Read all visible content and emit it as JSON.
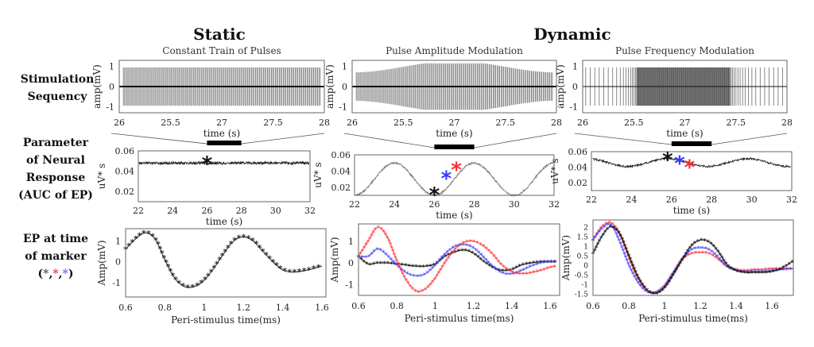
{
  "headers": {
    "static": "Static",
    "dynamic": "Dynamic"
  },
  "row_labels": {
    "row1": [
      "Stimulation",
      "Sequency"
    ],
    "row2": [
      "Parameter",
      "of Neural",
      "Response",
      "(AUC of EP)"
    ],
    "row3": [
      "EP at time",
      "of marker"
    ],
    "row3_markers": [
      "*",
      ",",
      "*",
      ",",
      "*"
    ],
    "row3_marker_colors": [
      "#555555",
      "#222222",
      "#ff3333",
      "#222222",
      "#6666ff"
    ]
  },
  "colors": {
    "black": "#111111",
    "red": "#ff2a2a",
    "blue": "#3a3aff",
    "gray_trace": "#777777"
  },
  "chart_data": [
    {
      "id": "stim-static",
      "type": "line",
      "title": "Constant Train of Pulses",
      "xlabel": "time (s)",
      "ylabel": "amp(mV)",
      "xticks": [
        "26",
        "25.5",
        "27",
        "27.5",
        "28"
      ],
      "yticks": [
        "1",
        "0",
        "-1"
      ],
      "ylim": [
        -1.3,
        1.3
      ],
      "pulse_count": 150,
      "pulse_amplitude": 0.95,
      "modulation": "none"
    },
    {
      "id": "stim-pam",
      "type": "line",
      "title": "Pulse Amplitude Modulation",
      "xlabel": "time (s)",
      "ylabel": "amp(mV)",
      "xticks": [
        "26",
        "25.5",
        "27",
        "27.5",
        "28"
      ],
      "yticks": [
        "1",
        "0",
        "-1"
      ],
      "ylim": [
        -1.3,
        1.3
      ],
      "pulse_count": 150,
      "amplitude_min": 0.7,
      "amplitude_max": 1.15,
      "modulation": "amplitude"
    },
    {
      "id": "stim-pfm",
      "type": "line",
      "title": "Pulse Frequency Modulation",
      "xlabel": "time (s)",
      "ylabel": "amp(mV)",
      "xticks": [
        "26",
        "25.5",
        "27",
        "27.5",
        "28"
      ],
      "yticks": [
        "1",
        "0",
        "-1"
      ],
      "ylim": [
        -1.3,
        1.3
      ],
      "pulse_amplitude": 0.95,
      "dense_region_fraction": [
        0.26,
        0.72
      ],
      "modulation": "frequency"
    },
    {
      "id": "auc-static",
      "type": "line",
      "xlabel": "time (s)",
      "ylabel": "uV* s",
      "xlim": [
        22,
        32
      ],
      "ylim": [
        0.01,
        0.06
      ],
      "xticks": [
        "22",
        "24",
        "26",
        "28",
        "30",
        "32"
      ],
      "yticks": [
        "0.06",
        "0.04",
        "0.02"
      ],
      "baseline": 0.048,
      "oscillation_amp": 0.0,
      "period": 4,
      "window": [
        26,
        28
      ],
      "markers": [
        {
          "x": 26,
          "y": 0.049,
          "color": "black"
        }
      ]
    },
    {
      "id": "auc-pam",
      "type": "line",
      "xlabel": "time (s)",
      "ylabel": "uV* s",
      "xlim": [
        22,
        32
      ],
      "ylim": [
        0.01,
        0.06
      ],
      "xticks": [
        "22",
        "24",
        "26",
        "28",
        "30",
        "32"
      ],
      "yticks": [
        "0.06",
        "0.04",
        "0.02"
      ],
      "baseline": 0.03,
      "oscillation_amp": 0.02,
      "period": 4,
      "window": [
        26,
        28
      ],
      "markers": [
        {
          "x": 26.0,
          "y": 0.013,
          "color": "black"
        },
        {
          "x": 26.6,
          "y": 0.033,
          "color": "blue"
        },
        {
          "x": 27.1,
          "y": 0.044,
          "color": "red"
        }
      ]
    },
    {
      "id": "auc-pfm",
      "type": "line",
      "xlabel": "time (s)",
      "ylabel": "uV* s",
      "xlim": [
        22,
        32
      ],
      "ylim": [
        0.01,
        0.06
      ],
      "xticks": [
        "22",
        "24",
        "26",
        "28",
        "30",
        "32"
      ],
      "yticks": [
        "0.06",
        "0.04",
        "0.02"
      ],
      "baseline": 0.046,
      "oscillation_amp": 0.005,
      "period": 4,
      "window": [
        26,
        28
      ],
      "markers": [
        {
          "x": 25.8,
          "y": 0.052,
          "color": "black"
        },
        {
          "x": 26.4,
          "y": 0.047,
          "color": "blue"
        },
        {
          "x": 26.9,
          "y": 0.042,
          "color": "red"
        }
      ]
    },
    {
      "id": "ep-static",
      "type": "line",
      "xlabel": "Peri-stimulus time(ms)",
      "ylabel": "Amp(mV)",
      "xlim": [
        0.6,
        1.62
      ],
      "ylim": [
        -1.7,
        1.6
      ],
      "xticks": [
        "0.6",
        "0.8",
        "1",
        "1.2",
        "1.4",
        "1.6"
      ],
      "yticks": [
        "1",
        "0",
        "-1"
      ],
      "series": [
        {
          "name": "black",
          "x": [
            0.6,
            0.65,
            0.7,
            0.75,
            0.8,
            0.85,
            0.9,
            0.95,
            1.0,
            1.05,
            1.1,
            1.15,
            1.2,
            1.25,
            1.3,
            1.35,
            1.4,
            1.45,
            1.5,
            1.55,
            1.6
          ],
          "y": [
            0.6,
            1.1,
            1.4,
            1.1,
            0.1,
            -0.8,
            -1.2,
            -1.2,
            -0.9,
            -0.3,
            0.4,
            1.0,
            1.2,
            1.0,
            0.5,
            0.0,
            -0.4,
            -0.5,
            -0.45,
            -0.35,
            -0.2
          ]
        }
      ]
    },
    {
      "id": "ep-pam",
      "type": "line",
      "xlabel": "Peri-stimulus time(ms)",
      "ylabel": "Amp(mV)",
      "xlim": [
        0.6,
        1.65
      ],
      "ylim": [
        -1.5,
        1.8
      ],
      "xticks": [
        "0.6",
        "0.8",
        "1",
        "1.2",
        "1.4",
        "1.6"
      ],
      "yticks": [
        "1",
        "0",
        "-1"
      ],
      "series": [
        {
          "name": "black",
          "x": [
            0.6,
            0.65,
            0.7,
            0.75,
            0.8,
            0.85,
            0.9,
            0.95,
            1.0,
            1.05,
            1.1,
            1.15,
            1.2,
            1.25,
            1.3,
            1.35,
            1.4,
            1.45,
            1.5,
            1.55,
            1.6,
            1.63
          ],
          "y": [
            0.3,
            -0.05,
            0.0,
            0.0,
            -0.05,
            -0.1,
            -0.15,
            -0.15,
            -0.05,
            0.3,
            0.5,
            0.6,
            0.45,
            0.1,
            -0.2,
            -0.35,
            -0.3,
            -0.1,
            0.0,
            0.05,
            0.05,
            0.05
          ]
        },
        {
          "name": "blue",
          "x": [
            0.6,
            0.65,
            0.7,
            0.75,
            0.8,
            0.85,
            0.9,
            0.95,
            1.0,
            1.05,
            1.1,
            1.15,
            1.2,
            1.25,
            1.3,
            1.35,
            1.4,
            1.45,
            1.5,
            1.55,
            1.6,
            1.63
          ],
          "y": [
            0.3,
            0.3,
            0.65,
            0.35,
            -0.1,
            -0.45,
            -0.6,
            -0.5,
            -0.1,
            0.4,
            0.75,
            0.85,
            0.7,
            0.3,
            -0.15,
            -0.45,
            -0.5,
            -0.35,
            -0.15,
            0.0,
            0.05,
            0.05
          ]
        },
        {
          "name": "red",
          "x": [
            0.6,
            0.65,
            0.7,
            0.75,
            0.8,
            0.85,
            0.9,
            0.95,
            1.0,
            1.05,
            1.1,
            1.15,
            1.2,
            1.25,
            1.3,
            1.35,
            1.4,
            1.45,
            1.5,
            1.55,
            1.6,
            1.63
          ],
          "y": [
            0.3,
            1.0,
            1.65,
            1.2,
            0.1,
            -0.8,
            -1.3,
            -1.2,
            -0.7,
            0.0,
            0.6,
            0.95,
            1.0,
            0.8,
            0.4,
            -0.1,
            -0.4,
            -0.5,
            -0.45,
            -0.35,
            -0.2,
            -0.15
          ]
        }
      ]
    },
    {
      "id": "ep-pfm",
      "type": "line",
      "xlabel": "Peri-stimulus time(ms)",
      "ylabel": "Amp(mV)",
      "xlim": [
        0.6,
        1.72
      ],
      "ylim": [
        -1.6,
        2.35
      ],
      "xticks": [
        "0.6",
        "0.8",
        "1",
        "1.2",
        "1.4",
        "1.6"
      ],
      "yticks": [
        "2",
        "1.5",
        "1",
        "0.5",
        "0",
        "-0.5",
        "-1",
        "-1.5"
      ],
      "series": [
        {
          "name": "black",
          "x": [
            0.6,
            0.65,
            0.7,
            0.75,
            0.8,
            0.85,
            0.9,
            0.95,
            1.0,
            1.05,
            1.1,
            1.15,
            1.2,
            1.25,
            1.3,
            1.35,
            1.4,
            1.45,
            1.5,
            1.55,
            1.6,
            1.65,
            1.72
          ],
          "y": [
            0.6,
            1.5,
            2.0,
            1.6,
            0.5,
            -0.6,
            -1.3,
            -1.5,
            -1.2,
            -0.5,
            0.3,
            1.0,
            1.3,
            1.2,
            0.7,
            0.0,
            -0.3,
            -0.4,
            -0.4,
            -0.4,
            -0.35,
            -0.2,
            0.2
          ]
        },
        {
          "name": "blue",
          "x": [
            0.6,
            0.65,
            0.7,
            0.75,
            0.8,
            0.85,
            0.9,
            0.95,
            1.0,
            1.05,
            1.1,
            1.15,
            1.2,
            1.25,
            1.3,
            1.35,
            1.4,
            1.45,
            1.5,
            1.55,
            1.6,
            1.65,
            1.72
          ],
          "y": [
            1.3,
            1.9,
            2.1,
            1.2,
            0.0,
            -0.9,
            -1.4,
            -1.45,
            -1.1,
            -0.4,
            0.3,
            0.8,
            0.9,
            0.8,
            0.4,
            -0.1,
            -0.3,
            -0.35,
            -0.35,
            -0.35,
            -0.3,
            -0.25,
            -0.2
          ]
        },
        {
          "name": "red",
          "x": [
            0.6,
            0.65,
            0.7,
            0.75,
            0.8,
            0.85,
            0.9,
            0.95,
            1.0,
            1.05,
            1.1,
            1.15,
            1.2,
            1.25,
            1.3,
            1.35,
            1.4,
            1.45,
            1.5,
            1.55,
            1.6,
            1.65,
            1.72
          ],
          "y": [
            1.3,
            2.0,
            2.2,
            1.6,
            0.4,
            -0.7,
            -1.3,
            -1.45,
            -1.1,
            -0.4,
            0.3,
            0.6,
            0.65,
            0.6,
            0.3,
            -0.1,
            -0.25,
            -0.3,
            -0.25,
            -0.25,
            -0.2,
            -0.2,
            -0.2
          ]
        }
      ]
    }
  ]
}
